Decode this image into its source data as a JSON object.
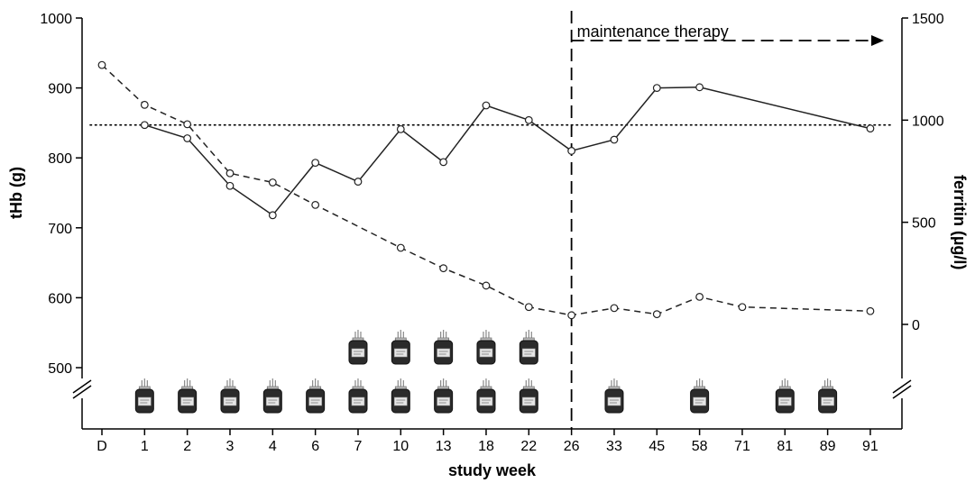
{
  "chart_data": {
    "type": "line",
    "xlabel": "study week",
    "ylabel_left": "tHb (g)",
    "ylabel_right": "ferritin (µg/l)",
    "categories": [
      "D",
      "1",
      "2",
      "3",
      "4",
      "6",
      "7",
      "10",
      "13",
      "18",
      "22",
      "26",
      "33",
      "45",
      "58",
      "71",
      "81",
      "89",
      "91"
    ],
    "y_left": {
      "ticks": [
        500,
        600,
        700,
        800,
        900,
        1000
      ],
      "range": [
        475,
        1000
      ],
      "axis_break": true
    },
    "y_right": {
      "ticks": [
        0,
        500,
        1000,
        1500
      ],
      "range": [
        -250,
        1500
      ],
      "axis_break": true
    },
    "reference_line": {
      "axis": "left",
      "value": 847,
      "style": "dotted"
    },
    "therapy_start": {
      "category": "26",
      "style": "dashed"
    },
    "annotation": "maintenance therapy",
    "series": [
      {
        "axis": "left",
        "style": "solid",
        "color": "#222222",
        "points": [
          {
            "x": "1",
            "y": 847
          },
          {
            "x": "2",
            "y": 828
          },
          {
            "x": "3",
            "y": 760
          },
          {
            "x": "4",
            "y": 718
          },
          {
            "x": "6",
            "y": 793
          },
          {
            "x": "7",
            "y": 766
          },
          {
            "x": "10",
            "y": 841
          },
          {
            "x": "13",
            "y": 794
          },
          {
            "x": "18",
            "y": 875
          },
          {
            "x": "22",
            "y": 854
          },
          {
            "x": "26",
            "y": 810
          },
          {
            "x": "33",
            "y": 826
          },
          {
            "x": "45",
            "y": 900
          },
          {
            "x": "58",
            "y": 901
          },
          {
            "x": "91",
            "y": 842
          }
        ]
      },
      {
        "axis": "right",
        "style": "dashed",
        "color": "#222222",
        "points": [
          {
            "x": "D",
            "y": 1270
          },
          {
            "x": "1",
            "y": 1075
          },
          {
            "x": "2",
            "y": 980
          },
          {
            "x": "3",
            "y": 740
          },
          {
            "x": "4",
            "y": 695
          },
          {
            "x": "6",
            "y": 585
          },
          {
            "x": "10",
            "y": 375
          },
          {
            "x": "13",
            "y": 275
          },
          {
            "x": "18",
            "y": 190
          },
          {
            "x": "22",
            "y": 85
          },
          {
            "x": "26",
            "y": 45
          },
          {
            "x": "33",
            "y": 80
          },
          {
            "x": "45",
            "y": 50
          },
          {
            "x": "58",
            "y": 135
          },
          {
            "x": "71",
            "y": 85
          },
          {
            "x": "91",
            "y": 65
          }
        ]
      }
    ],
    "transfusions": [
      {
        "x": "1",
        "units": 1
      },
      {
        "x": "2",
        "units": 1
      },
      {
        "x": "3",
        "units": 1
      },
      {
        "x": "4",
        "units": 1
      },
      {
        "x": "6",
        "units": 1
      },
      {
        "x": "7",
        "units": 2
      },
      {
        "x": "10",
        "units": 2
      },
      {
        "x": "13",
        "units": 2
      },
      {
        "x": "18",
        "units": 2
      },
      {
        "x": "22",
        "units": 2
      },
      {
        "x": "33",
        "units": 1
      },
      {
        "x": "58",
        "units": 1
      },
      {
        "x": "81",
        "units": 1
      },
      {
        "x": "89",
        "units": 1
      }
    ]
  }
}
